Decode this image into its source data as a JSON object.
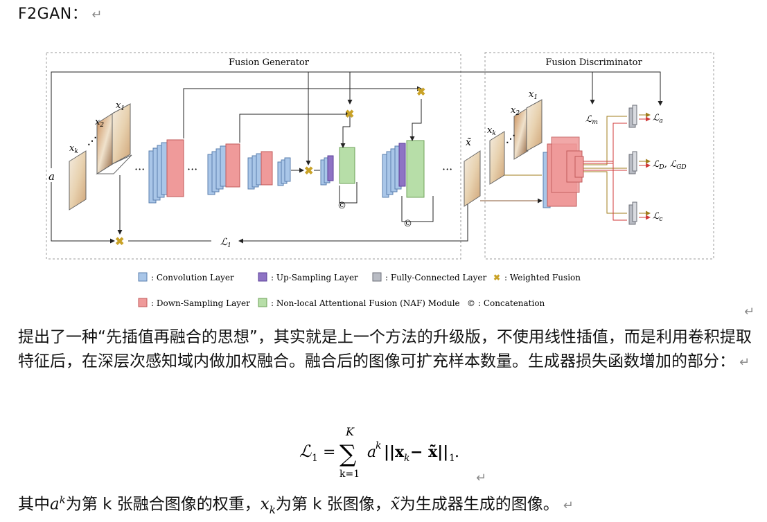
{
  "heading": {
    "title": "F2GAN：",
    "return_mark": "↵"
  },
  "figure": {
    "generator_title": "Fusion Generator",
    "discriminator_title": "Fusion Discriminator",
    "input_a": "a",
    "inputs": {
      "xk": "x",
      "xk_sub": "k",
      "x2": "x",
      "x2_sub": "2",
      "x1": "x",
      "x1_sub": "1"
    },
    "output_xt": "x̃",
    "loss_l1": "ℒ",
    "loss_l1_sub": "1",
    "loss_lm": "ℒ",
    "loss_lm_sub": "m",
    "loss_la": "ℒ",
    "loss_la_sub": "a",
    "loss_ld": "ℒ",
    "loss_ld_sub": "D",
    "loss_lgd": ", ℒ",
    "loss_lgd_sub": "GD",
    "loss_lc": "ℒ",
    "loss_lc_sub": "c",
    "concat_symbol": "©",
    "legend": [
      {
        "label": ": Convolution Layer",
        "color": "#a9c6e8"
      },
      {
        "label": ": Up-Sampling Layer",
        "color": "#8e73c4"
      },
      {
        "label": ": Fully-Connected Layer",
        "color": "#b9bcc4"
      },
      {
        "label": ": Weighted Fusion",
        "color": "#c9a227"
      },
      {
        "label": ": Down-Sampling Layer",
        "color": "#ef9a9a"
      },
      {
        "label": ": Non-local Attentional Fusion (NAF) Module",
        "color": "#b7dea8"
      },
      {
        "label": ": Concatenation",
        "color": "#333333"
      }
    ]
  },
  "figure_return_mark": "↵",
  "paragraph": "提出了一种“先插值再融合的思想”，其实就是上一个方法的升级版，不使用线性插值，而是利用卷积提取特征后，在深层次感知域内做加权融合。融合后的图像可扩充样本数量。生成器损失函数增加的部分：",
  "paragraph_return_mark": "↵",
  "formula": {
    "lhs": "ℒ",
    "lhs_sub": "1",
    "equals": "=",
    "sum_top": "K",
    "sum_symbol": "∑",
    "sum_bottom": "k=1",
    "term_a": "a",
    "term_a_sup": "k",
    "term_body": "||x",
    "term_body_sub": "k",
    "term_rest": " − x̃||",
    "term_rest_sub": "1",
    "term_end": "."
  },
  "formula_return_mark": "↵",
  "last_line": {
    "pre": "其中",
    "a": "a",
    "a_sup": "k",
    "mid1": "为第 k 张融合图像的权重，",
    "x": "x",
    "x_sub": "k",
    "mid2": "为第 k 张图像，",
    "xt": "x̃",
    "end": "为生成器生成的图像。",
    "return_mark": "↵"
  }
}
